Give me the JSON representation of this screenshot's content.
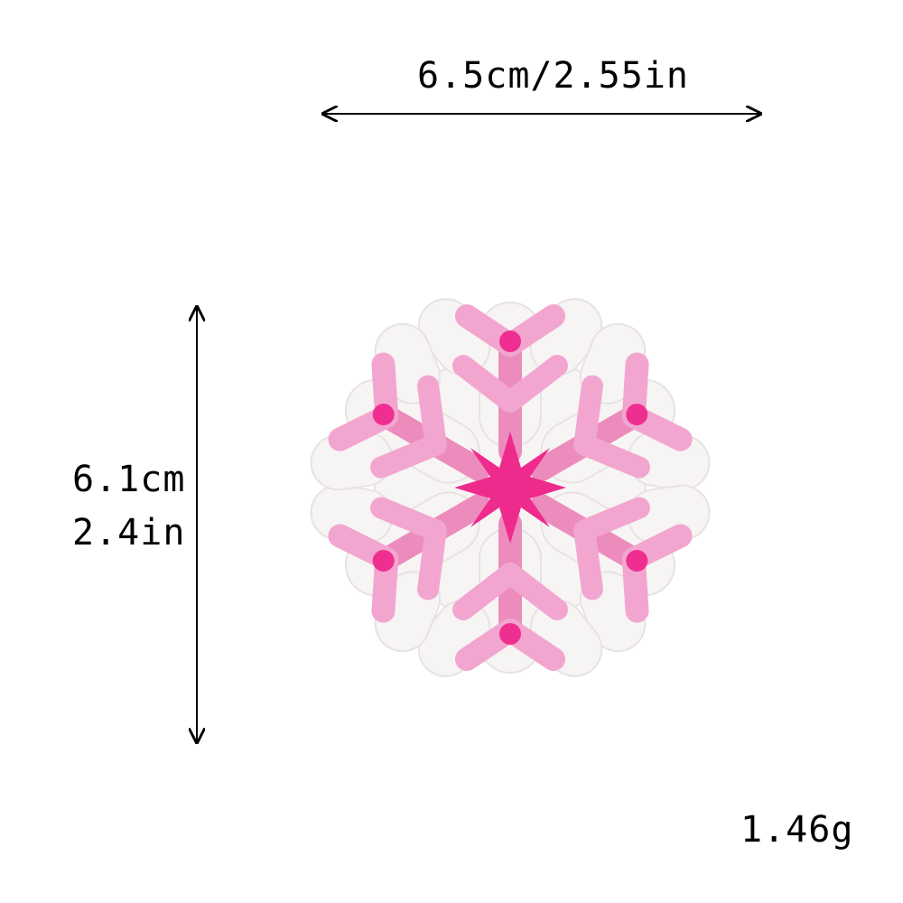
{
  "dimensions": {
    "width_label": "6.5cm/2.55in",
    "height_cm_label": "6.1cm",
    "height_in_label": "2.4in"
  },
  "weight_label": "1.46g",
  "colors": {
    "background": "#ffffff",
    "felt_backing": "#f7f4f4",
    "arm_light_pink": "#f2a6cf",
    "arm_mid_pink": "#ec8cbc",
    "center_hot_pink": "#ee2b8c",
    "dot_hot_pink": "#ef2f8f",
    "arrow": "#000000"
  }
}
